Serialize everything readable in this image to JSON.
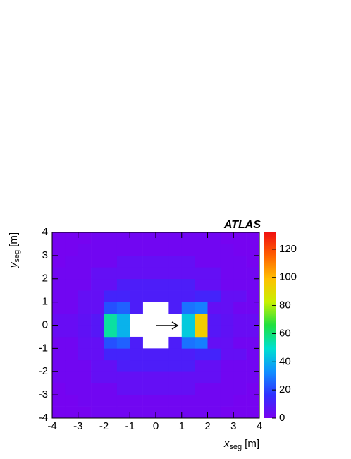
{
  "chart_data": {
    "type": "heatmap",
    "title": "ATLAS",
    "x_label": {
      "main": "x",
      "sub": "seg",
      "unit": "[m]"
    },
    "y_label": {
      "main": "y",
      "sub": "seg",
      "unit": "[m]"
    },
    "xbins": [
      -4,
      -3.5,
      -3,
      -2.5,
      -2,
      -1.5,
      -1,
      -0.5,
      0,
      0.5,
      1,
      1.5,
      2,
      2.5,
      3,
      3.5,
      4
    ],
    "ybins": [
      -4,
      -3.5,
      -3,
      -2.5,
      -2,
      -1.5,
      -1,
      -0.5,
      0,
      0.5,
      1,
      1.5,
      2,
      2.5,
      3,
      3.5,
      4
    ],
    "z": [
      [
        1,
        1,
        1,
        2,
        2,
        2,
        2,
        2,
        2,
        2,
        2,
        2,
        2,
        1,
        1,
        1
      ],
      [
        1,
        1,
        2,
        2,
        2,
        2,
        2,
        2,
        2,
        2,
        2,
        2,
        2,
        2,
        1,
        1
      ],
      [
        1,
        2,
        2,
        2,
        2,
        5,
        5,
        5,
        5,
        5,
        5,
        2,
        2,
        2,
        2,
        1
      ],
      [
        2,
        2,
        2,
        5,
        5,
        5,
        5,
        5,
        5,
        5,
        5,
        5,
        5,
        2,
        2,
        2
      ],
      [
        2,
        2,
        2,
        5,
        5,
        10,
        10,
        10,
        10,
        10,
        10,
        5,
        5,
        2,
        2,
        2
      ],
      [
        2,
        2,
        5,
        5,
        12,
        12,
        10,
        10,
        10,
        10,
        10,
        12,
        12,
        5,
        5,
        2
      ],
      [
        2,
        2,
        5,
        5,
        22,
        25,
        10,
        null,
        null,
        10,
        28,
        30,
        5,
        5,
        2,
        2
      ],
      [
        4,
        4,
        6,
        8,
        55,
        40,
        null,
        null,
        null,
        null,
        45,
        95,
        8,
        6,
        4,
        4
      ],
      [
        4,
        4,
        6,
        8,
        55,
        40,
        null,
        null,
        null,
        null,
        45,
        95,
        8,
        6,
        4,
        4
      ],
      [
        2,
        2,
        5,
        5,
        22,
        25,
        10,
        null,
        null,
        10,
        28,
        30,
        5,
        5,
        2,
        2
      ],
      [
        2,
        2,
        5,
        5,
        12,
        12,
        10,
        10,
        10,
        10,
        10,
        12,
        12,
        5,
        5,
        2
      ],
      [
        2,
        2,
        2,
        5,
        5,
        10,
        10,
        10,
        10,
        10,
        10,
        5,
        5,
        2,
        2,
        2
      ],
      [
        2,
        2,
        2,
        5,
        5,
        5,
        5,
        5,
        5,
        5,
        5,
        5,
        5,
        2,
        2,
        2
      ],
      [
        1,
        2,
        2,
        2,
        2,
        5,
        5,
        5,
        5,
        5,
        5,
        2,
        2,
        2,
        2,
        1
      ],
      [
        1,
        1,
        2,
        2,
        2,
        2,
        2,
        2,
        2,
        2,
        2,
        2,
        2,
        2,
        1,
        1
      ],
      [
        1,
        1,
        1,
        2,
        2,
        2,
        2,
        2,
        2,
        2,
        2,
        2,
        2,
        1,
        1,
        1
      ]
    ],
    "xlim": [
      -4,
      4
    ],
    "ylim": [
      -4,
      4
    ],
    "xticks": [
      -4,
      -3,
      -2,
      -1,
      0,
      1,
      2,
      3,
      4
    ],
    "yticks": [
      -4,
      -3,
      -2,
      -1,
      0,
      1,
      2,
      3,
      4
    ],
    "zlim": [
      0,
      132
    ],
    "zticks": [
      0,
      20,
      40,
      60,
      80,
      100,
      120
    ],
    "colormap": [
      "#7a00f0",
      "#3030ff",
      "#1090ff",
      "#00e0d0",
      "#20e040",
      "#c8f000",
      "#ffc000",
      "#ff6000",
      "#f01010"
    ]
  }
}
